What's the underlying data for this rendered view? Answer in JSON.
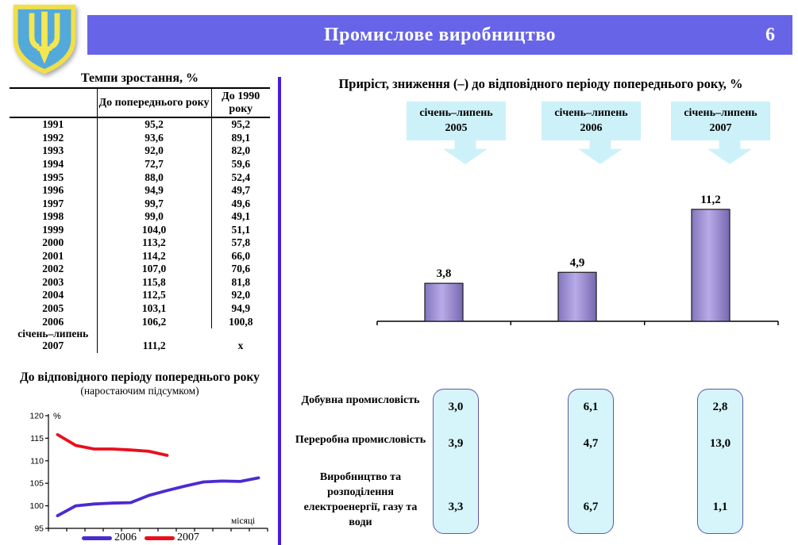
{
  "header": {
    "title": "Промислове виробництво",
    "slide_number": "6"
  },
  "colors": {
    "header_bar": "#6764E8",
    "divider": "#4A1BDF",
    "period_box_cyan": "#CDF1F8",
    "value_box_fill": "#D6F5FA",
    "value_box_border": "#6057A8",
    "bar_fill_center": "#B9ABE8",
    "bar_fill_edge": "#7E70B8",
    "line_2006": "#4B2BD0",
    "line_2007": "#E8101C",
    "emblem_shield_blue": "#54A9DB",
    "emblem_trident_yellow": "#F5E751"
  },
  "left_panel": {
    "growth_table": {
      "title": "Темпи зростання, %",
      "columns": [
        "",
        "До попереднього року",
        "До 1990 року"
      ],
      "rows": [
        {
          "year": "1991",
          "vs_prev": "95,2",
          "vs_1990": "95,2"
        },
        {
          "year": "1992",
          "vs_prev": "93,6",
          "vs_1990": "89,1"
        },
        {
          "year": "1993",
          "vs_prev": "92,0",
          "vs_1990": "82,0"
        },
        {
          "year": "1994",
          "vs_prev": "72,7",
          "vs_1990": "59,6"
        },
        {
          "year": "1995",
          "vs_prev": "88,0",
          "vs_1990": "52,4"
        },
        {
          "year": "1996",
          "vs_prev": "94,9",
          "vs_1990": "49,7"
        },
        {
          "year": "1997",
          "vs_prev": "99,7",
          "vs_1990": "49,6"
        },
        {
          "year": "1998",
          "vs_prev": "99,0",
          "vs_1990": "49,1"
        },
        {
          "year": "1999",
          "vs_prev": "104,0",
          "vs_1990": "51,1"
        },
        {
          "year": "2000",
          "vs_prev": "113,2",
          "vs_1990": "57,8"
        },
        {
          "year": "2001",
          "vs_prev": "114,2",
          "vs_1990": "66,0"
        },
        {
          "year": "2002",
          "vs_prev": "107,0",
          "vs_1990": "70,6"
        },
        {
          "year": "2003",
          "vs_prev": "115,8",
          "vs_1990": "81,8"
        },
        {
          "year": "2004",
          "vs_prev": "112,5",
          "vs_1990": "92,0"
        },
        {
          "year": "2005",
          "vs_prev": "103,1",
          "vs_1990": "94,9"
        },
        {
          "year": "2006",
          "vs_prev": "106,2",
          "vs_1990": "100,8"
        },
        {
          "year": "січень–липень 2007",
          "vs_prev": "111,2",
          "vs_1990": "х"
        }
      ]
    },
    "line_chart_title": "До відповідного періоду попереднього року",
    "line_chart_subtitle": "(наростаючим підсумком)"
  },
  "right_panel": {
    "title": "Приріст, зниження (–) до відповідного періоду попереднього року, %",
    "period_labels": [
      {
        "period": "січень–липень",
        "year": "2005"
      },
      {
        "period": "січень–липень",
        "year": "2006"
      },
      {
        "period": "січень–липень",
        "year": "2007"
      }
    ],
    "sectors": [
      {
        "label": "Добувна промисловість"
      },
      {
        "label": "Переробна промисловість"
      },
      {
        "label": "Виробництво та розподілення електроенергії, газу та води"
      }
    ],
    "sector_values": [
      [
        "3,0",
        "3,9",
        "3,3"
      ],
      [
        "6,1",
        "4,7",
        "6,7"
      ],
      [
        "2,8",
        "13,0",
        "1,1"
      ]
    ]
  },
  "chart_data": [
    {
      "type": "line",
      "title": "До відповідного періоду попереднього року (наростаючим підсумком)",
      "xlabel": "місяці",
      "ylabel": "%",
      "ylim": [
        95,
        120
      ],
      "yticks": [
        95,
        100,
        105,
        110,
        115,
        120
      ],
      "x": [
        1,
        2,
        3,
        4,
        5,
        6,
        7,
        8,
        9,
        10,
        11,
        12
      ],
      "grid": false,
      "legend_position": "bottom",
      "series": [
        {
          "name": "2006",
          "color": "#4B2BD0",
          "values": [
            97.8,
            100.0,
            100.4,
            100.6,
            100.7,
            102.3,
            103.4,
            104.4,
            105.3,
            105.5,
            105.4,
            106.2
          ]
        },
        {
          "name": "2007",
          "color": "#E8101C",
          "values": [
            115.8,
            113.4,
            112.6,
            112.6,
            112.4,
            112.1,
            111.2
          ]
        }
      ]
    },
    {
      "type": "bar",
      "title": "Приріст, зниження (–) до відповідного періоду попереднього року, %",
      "categories": [
        "січень–липень 2005",
        "січень–липень 2006",
        "січень–липень 2007"
      ],
      "values": [
        3.8,
        4.9,
        11.2
      ],
      "data_labels": [
        "3,8",
        "4,9",
        "11,2"
      ],
      "xlabel": "",
      "ylabel": "",
      "ylim": [
        0,
        13
      ],
      "bar_color": "#9B8BD0"
    },
    {
      "type": "table",
      "title": "Приріст, зниження (–) до відповідного періоду попереднього року, %",
      "columns": [
        "січень–липень 2005",
        "січень–липень 2006",
        "січень–липень 2007"
      ],
      "rows": [
        {
          "label": "Добувна промисловість",
          "values": [
            3.0,
            6.1,
            2.8
          ]
        },
        {
          "label": "Переробна промисловість",
          "values": [
            3.9,
            4.7,
            13.0
          ]
        },
        {
          "label": "Виробництво та розподілення електроенергії, газу та води",
          "values": [
            3.3,
            6.7,
            1.1
          ]
        }
      ]
    },
    {
      "type": "table",
      "title": "Темпи зростання, %",
      "columns": [
        "",
        "До попереднього року",
        "До 1990 року"
      ],
      "rows": [
        [
          "1991",
          95.2,
          95.2
        ],
        [
          "1992",
          93.6,
          89.1
        ],
        [
          "1993",
          92.0,
          82.0
        ],
        [
          "1994",
          72.7,
          59.6
        ],
        [
          "1995",
          88.0,
          52.4
        ],
        [
          "1996",
          94.9,
          49.7
        ],
        [
          "1997",
          99.7,
          49.6
        ],
        [
          "1998",
          99.0,
          49.1
        ],
        [
          "1999",
          104.0,
          51.1
        ],
        [
          "2000",
          113.2,
          57.8
        ],
        [
          "2001",
          114.2,
          66.0
        ],
        [
          "2002",
          107.0,
          70.6
        ],
        [
          "2003",
          115.8,
          81.8
        ],
        [
          "2004",
          112.5,
          92.0
        ],
        [
          "2005",
          103.1,
          94.9
        ],
        [
          "2006",
          106.2,
          100.8
        ],
        [
          "січень–липень 2007",
          111.2,
          "х"
        ]
      ]
    }
  ]
}
